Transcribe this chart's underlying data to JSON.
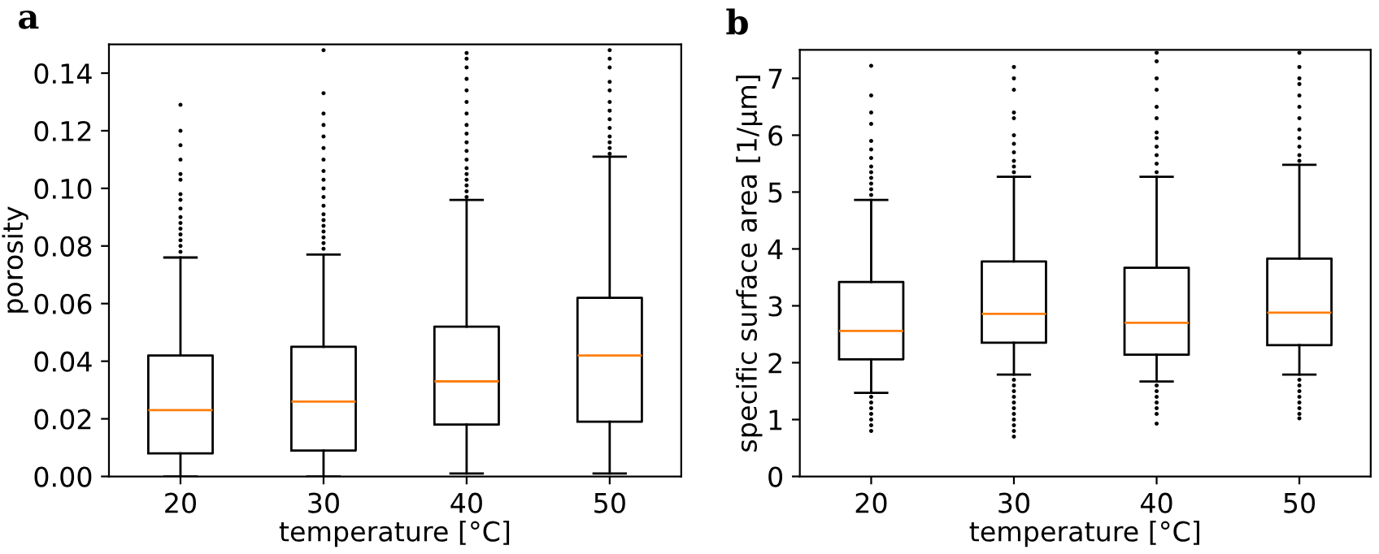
{
  "chart_data": [
    {
      "type": "box",
      "title": "a",
      "xlabel": "temperature [°C]",
      "ylabel": "porosity",
      "categories": [
        "20",
        "30",
        "40",
        "50"
      ],
      "ylim": [
        0,
        0.15
      ],
      "yticks": [
        {
          "value": 0,
          "label": "0.00"
        },
        {
          "value": 0.02,
          "label": "0.02"
        },
        {
          "value": 0.04,
          "label": "0.04"
        },
        {
          "value": 0.06,
          "label": "0.06"
        },
        {
          "value": 0.08,
          "label": "0.08"
        },
        {
          "value": 0.1,
          "label": "0.10"
        },
        {
          "value": 0.12,
          "label": "0.12"
        },
        {
          "value": 0.14,
          "label": "0.14"
        }
      ],
      "grid": false,
      "legend": false,
      "boxes": [
        {
          "low": 0,
          "q1": 0.008,
          "median": 0.023,
          "q3": 0.042,
          "high": 0.076,
          "outliers": [
            0.078,
            0.08,
            0.082,
            0.084,
            0.086,
            0.088,
            0.09,
            0.093,
            0.096,
            0.098,
            0.103,
            0.105,
            0.11,
            0.115,
            0.12,
            0.129
          ]
        },
        {
          "low": 0,
          "q1": 0.009,
          "median": 0.026,
          "q3": 0.045,
          "high": 0.077,
          "outliers": [
            0.079,
            0.081,
            0.083,
            0.085,
            0.087,
            0.089,
            0.091,
            0.094,
            0.097,
            0.1,
            0.103,
            0.106,
            0.11,
            0.114,
            0.118,
            0.122,
            0.126,
            0.133,
            0.148
          ]
        },
        {
          "low": 0.001,
          "q1": 0.018,
          "median": 0.033,
          "q3": 0.052,
          "high": 0.096,
          "outliers": [
            0.097,
            0.099,
            0.101,
            0.103,
            0.105,
            0.107,
            0.11,
            0.113,
            0.116,
            0.119,
            0.122,
            0.126,
            0.13,
            0.134,
            0.138,
            0.142,
            0.145,
            0.147
          ]
        },
        {
          "low": 0.001,
          "q1": 0.019,
          "median": 0.042,
          "q3": 0.062,
          "high": 0.111,
          "outliers": [
            0.112,
            0.114,
            0.116,
            0.118,
            0.121,
            0.124,
            0.127,
            0.13,
            0.134,
            0.137,
            0.142,
            0.145,
            0.148
          ]
        }
      ]
    },
    {
      "type": "box",
      "title": "b",
      "xlabel": "temperature [°C]",
      "ylabel": "specific surface area [1/µm]",
      "categories": [
        "20",
        "30",
        "40",
        "50"
      ],
      "ylim": [
        0,
        7.5
      ],
      "yticks": [
        0,
        1,
        2,
        3,
        4,
        5,
        6,
        7
      ],
      "grid": false,
      "legend": false,
      "boxes": [
        {
          "low": 1.47,
          "q1": 2.06,
          "median": 2.56,
          "q3": 3.42,
          "high": 4.86,
          "outliers": [
            0.8,
            0.9,
            1.0,
            1.1,
            1.2,
            1.3,
            1.4,
            4.95,
            5.05,
            5.15,
            5.25,
            5.35,
            5.45,
            5.6,
            5.75,
            5.9,
            6.2,
            6.4,
            6.7,
            7.22
          ]
        },
        {
          "low": 1.79,
          "q1": 2.35,
          "median": 2.86,
          "q3": 3.78,
          "high": 5.27,
          "outliers": [
            0.7,
            0.8,
            0.9,
            1.0,
            1.1,
            1.2,
            1.3,
            1.4,
            1.5,
            1.6,
            1.7,
            5.35,
            5.45,
            5.55,
            5.7,
            5.85,
            6.0,
            6.3,
            6.4,
            6.8,
            7.0,
            7.2
          ]
        },
        {
          "low": 1.67,
          "q1": 2.14,
          "median": 2.7,
          "q3": 3.67,
          "high": 5.27,
          "outliers": [
            0.93,
            1.1,
            1.2,
            1.3,
            1.4,
            1.5,
            1.6,
            5.35,
            5.5,
            5.65,
            5.8,
            5.95,
            6.05,
            6.3,
            6.5,
            6.8,
            7.0,
            7.3,
            7.45
          ]
        },
        {
          "low": 1.79,
          "q1": 2.31,
          "median": 2.88,
          "q3": 3.83,
          "high": 5.48,
          "outliers": [
            1.02,
            1.1,
            1.2,
            1.3,
            1.4,
            1.5,
            1.6,
            1.7,
            5.55,
            5.65,
            5.8,
            5.95,
            6.1,
            6.3,
            6.5,
            6.7,
            6.9,
            7.0,
            7.2,
            7.45
          ]
        }
      ]
    }
  ]
}
